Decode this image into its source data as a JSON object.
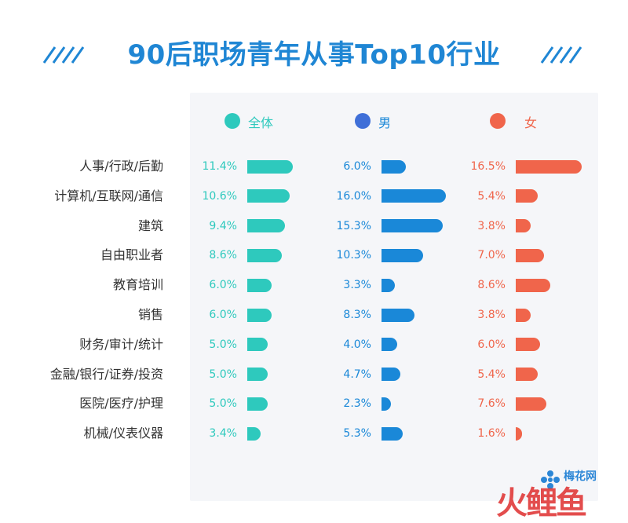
{
  "colors": {
    "title": "#1f86d4",
    "all": "#2ec9bd",
    "male": "#1a88d8",
    "female": "#f0654b",
    "legend_male_dot": "#3f6fd8",
    "category_text": "#333333"
  },
  "watermark": {
    "text1": "梅花网",
    "text2": "火鲤鱼"
  },
  "chart_data": {
    "type": "bar",
    "title": "90后职场青年从事Top10行业",
    "orientation": "horizontal",
    "unit": "%",
    "categories": [
      "人事/行政/后勤",
      "计算机/互联网/通信",
      "建筑",
      "自由职业者",
      "教育培训",
      "销售",
      "财务/审计/统计",
      "金融/银行/证券/投资",
      "医院/医疗/护理",
      "机械/仪表仪器"
    ],
    "series": [
      {
        "name": "全体",
        "values": [
          11.4,
          10.6,
          9.4,
          8.6,
          6.0,
          6.0,
          5.0,
          5.0,
          5.0,
          3.4
        ],
        "labels": [
          "11.4%",
          "10.6%",
          "9.4%",
          "8.6%",
          "6.0%",
          "6.0%",
          "5.0%",
          "5.0%",
          "5.0%",
          "3.4%"
        ]
      },
      {
        "name": "男",
        "values": [
          6.0,
          16.0,
          15.3,
          10.3,
          3.3,
          8.3,
          4.0,
          4.7,
          2.3,
          5.3
        ],
        "labels": [
          "6.0%",
          "16.0%",
          "15.3%",
          "10.3%",
          "3.3%",
          "8.3%",
          "4.0%",
          "4.7%",
          "2.3%",
          "5.3%"
        ]
      },
      {
        "name": "女",
        "values": [
          16.5,
          5.4,
          3.8,
          7.0,
          8.6,
          3.8,
          6.0,
          5.4,
          7.6,
          1.6
        ],
        "labels": [
          "16.5%",
          "5.4%",
          "3.8%",
          "7.0%",
          "8.6%",
          "3.8%",
          "6.0%",
          "5.4%",
          "7.6%",
          "1.6%"
        ]
      }
    ],
    "legend": "top",
    "grid": false
  }
}
